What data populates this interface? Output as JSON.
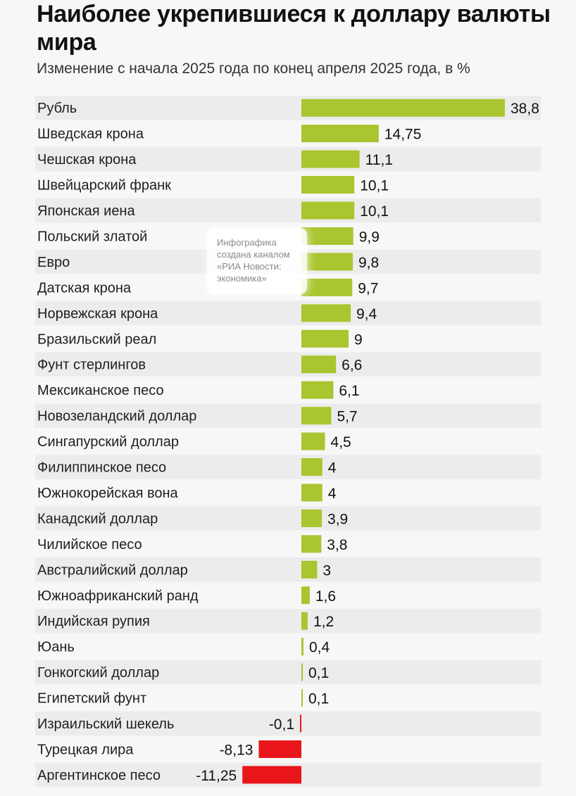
{
  "header": {
    "title": "Наиболее укрепившиеся к доллару валюты мира",
    "subtitle": "Изменение с начала 2025 года по конец апреля 2025 года, в %"
  },
  "watermark": {
    "text": "Инфографика\nсоздана каналом\n«РИА Новости:\nэкономика»"
  },
  "colors": {
    "positive": "#a9c52f",
    "negative": "#e8161a",
    "row_stripe": "#ececec"
  },
  "chart_data": {
    "type": "bar",
    "orientation": "horizontal",
    "title": "Наиболее укрепившиеся к доллару валюты мира",
    "subtitle": "Изменение с начала 2025 года по конец апреля 2025 года, в %",
    "categories": [
      "Рубль",
      "Шведская крона",
      "Чешская крона",
      "Швейцарский франк",
      "Японская иена",
      "Польский златой",
      "Евро",
      "Датская крона",
      "Норвежская крона",
      "Бразильский реал",
      "Фунт стерлингов",
      "Мексиканское песо",
      "Новозеландский доллар",
      "Сингапурский доллар",
      "Филиппинское песо",
      "Южнокорейская вона",
      "Канадский доллар",
      "Чилийское песо",
      "Австралийский доллар",
      "Южноафриканский ранд",
      "Индийская рупия",
      "Юань",
      "Гонкогский доллар",
      "Египетский фунт",
      "Израильский шекель",
      "Турецкая лира",
      "Аргентинское песо"
    ],
    "values": [
      38.8,
      14.75,
      11.1,
      10.1,
      10.1,
      9.9,
      9.8,
      9.7,
      9.4,
      9,
      6.6,
      6.1,
      5.7,
      4.5,
      4,
      4,
      3.9,
      3.8,
      3,
      1.6,
      1.2,
      0.4,
      0.1,
      0.1,
      -0.1,
      -8.13,
      -11.25
    ],
    "value_labels": [
      "38,8",
      "14,75",
      "11,1",
      "10,1",
      "10,1",
      "9,9",
      "9,8",
      "9,7",
      "9,4",
      "9",
      "6,6",
      "6,1",
      "5,7",
      "4,5",
      "4",
      "4",
      "3,9",
      "3,8",
      "3",
      "1,6",
      "1,2",
      "0,4",
      "0,1",
      "0,1",
      "-0,1",
      "-8,13",
      "-11,25"
    ],
    "grid": false,
    "legend": "none"
  }
}
